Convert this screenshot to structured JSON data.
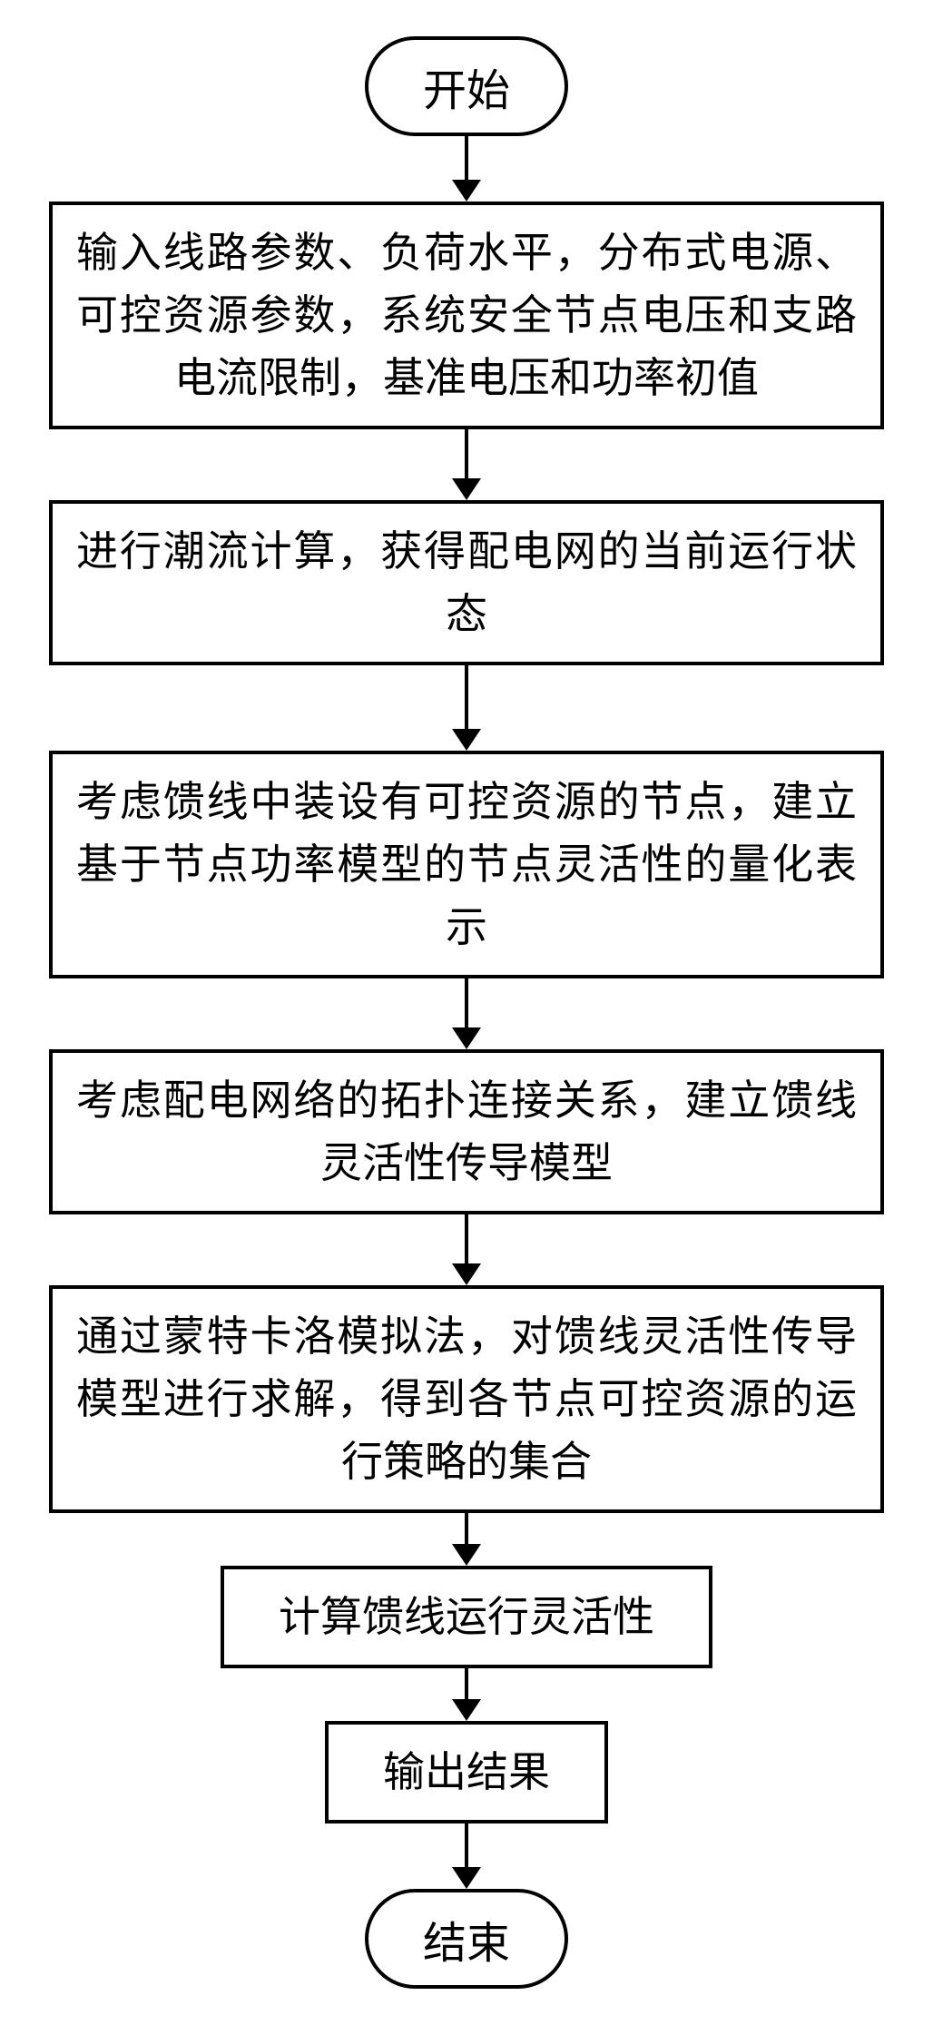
{
  "flowchart": {
    "nodes": [
      {
        "id": "start",
        "type": "terminator",
        "label": "开始"
      },
      {
        "id": "step1",
        "type": "process",
        "label": "输入线路参数、负荷水平，分布式电源、可控资源参数，系统安全节点电压和支路电流限制，基准电压和功率初值"
      },
      {
        "id": "step2",
        "type": "process",
        "label": "进行潮流计算，获得配电网的当前运行状态"
      },
      {
        "id": "step3",
        "type": "process",
        "label": "考虑馈线中装设有可控资源的节点，建立基于节点功率模型的节点灵活性的量化表示"
      },
      {
        "id": "step4",
        "type": "process",
        "label": "考虑配电网络的拓扑连接关系，建立馈线灵活性传导模型"
      },
      {
        "id": "step5",
        "type": "process",
        "label": "通过蒙特卡洛模拟法，对馈线灵活性传导模型进行求解，得到各节点可控资源的运行策略的集合"
      },
      {
        "id": "step6",
        "type": "process-narrow",
        "label": "计算馈线运行灵活性"
      },
      {
        "id": "step7",
        "type": "process-narrow",
        "label": "输出结果"
      },
      {
        "id": "end",
        "type": "terminator",
        "label": "结束"
      }
    ],
    "arrows": {
      "heights_after": [
        50,
        56,
        72,
        56,
        56,
        36,
        36,
        50
      ]
    },
    "style": {
      "border_color": "#000000",
      "border_width": 4,
      "background_color": "#ffffff",
      "font_family": "SimSun",
      "terminator_fontsize": 48,
      "process_fontsize": 46,
      "arrowhead_width": 32,
      "arrowhead_height": 24,
      "line_width": 4
    }
  }
}
